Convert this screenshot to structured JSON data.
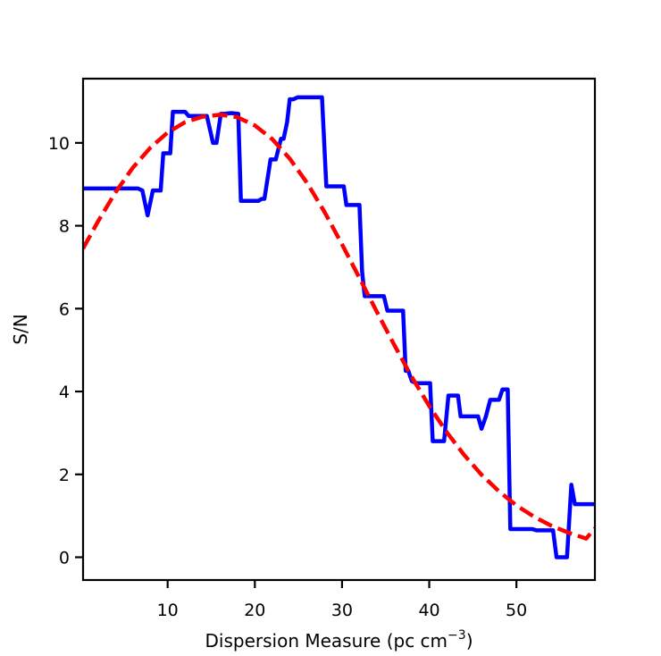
{
  "chart_data": {
    "type": "line",
    "title": "",
    "xlabel": "Dispersion Measure (pc cm",
    "xlabel_sup": "−3",
    "xlabel_close": ")",
    "ylabel": "S/N",
    "xlim": [
      0.3,
      59.0
    ],
    "ylim": [
      -0.55,
      11.55
    ],
    "xticks": [
      10,
      20,
      30,
      40,
      50
    ],
    "yticks": [
      0,
      2,
      4,
      6,
      8,
      10
    ],
    "grid": false,
    "legend": "none",
    "series": [
      {
        "style": "solid",
        "color": "#0000ff",
        "x": [
          0.3,
          6.6,
          7.1,
          7.7,
          8.3,
          9.2,
          9.5,
          10.3,
          10.6,
          12.0,
          12.4,
          14.5,
          15.2,
          15.6,
          16.1,
          16.5,
          17.3,
          18.1,
          18.4,
          20.4,
          20.8,
          21.1,
          21.8,
          22.4,
          23.0,
          23.3,
          23.7,
          24.0,
          24.4,
          24.9,
          25.3,
          25.8,
          27.7,
          28.2,
          28.5,
          30.2,
          30.5,
          32.0,
          32.3,
          32.6,
          34.8,
          35.2,
          37.0,
          37.3,
          37.6,
          38.0,
          38.5,
          40.1,
          40.4,
          41.7,
          42.2,
          43.3,
          43.6,
          45.6,
          46.0,
          46.5,
          47.0,
          48.0,
          48.4,
          49.0,
          49.3,
          51.8,
          52.3,
          54.2,
          54.6,
          55.8,
          56.3,
          56.7,
          59.0
        ],
        "y": [
          8.9,
          8.9,
          8.85,
          8.25,
          8.85,
          8.85,
          9.75,
          9.75,
          10.75,
          10.75,
          10.65,
          10.65,
          10.0,
          10.0,
          10.7,
          10.7,
          10.72,
          10.7,
          8.6,
          8.6,
          8.65,
          8.65,
          9.6,
          9.6,
          10.1,
          10.1,
          10.5,
          11.05,
          11.05,
          11.1,
          11.1,
          11.1,
          11.1,
          8.95,
          8.95,
          8.95,
          8.5,
          8.5,
          6.9,
          6.3,
          6.3,
          5.95,
          5.95,
          4.5,
          4.5,
          4.25,
          4.2,
          4.2,
          2.8,
          2.8,
          3.9,
          3.9,
          3.4,
          3.4,
          3.1,
          3.4,
          3.8,
          3.8,
          4.05,
          4.05,
          0.68,
          0.68,
          0.65,
          0.65,
          0.0,
          0.0,
          1.75,
          1.28,
          1.28
        ]
      },
      {
        "style": "dashed",
        "color": "#ff0000",
        "x": [
          0.3,
          2.0,
          4.0,
          6.0,
          8.0,
          10.0,
          12.0,
          14.0,
          16.0,
          18.0,
          20.0,
          22.0,
          24.0,
          26.0,
          28.0,
          30.0,
          32.0,
          34.0,
          36.0,
          38.0,
          40.0,
          42.0,
          44.0,
          46.0,
          48.0,
          50.0,
          52.0,
          54.0,
          56.0,
          58.0,
          59.0
        ],
        "y": [
          7.45,
          8.1,
          8.8,
          9.4,
          9.88,
          10.25,
          10.5,
          10.63,
          10.68,
          10.62,
          10.42,
          10.09,
          9.62,
          9.03,
          8.33,
          7.55,
          6.74,
          5.92,
          5.12,
          4.35,
          3.65,
          3.02,
          2.47,
          1.99,
          1.59,
          1.25,
          0.98,
          0.76,
          0.59,
          0.45,
          0.7
        ]
      }
    ]
  }
}
